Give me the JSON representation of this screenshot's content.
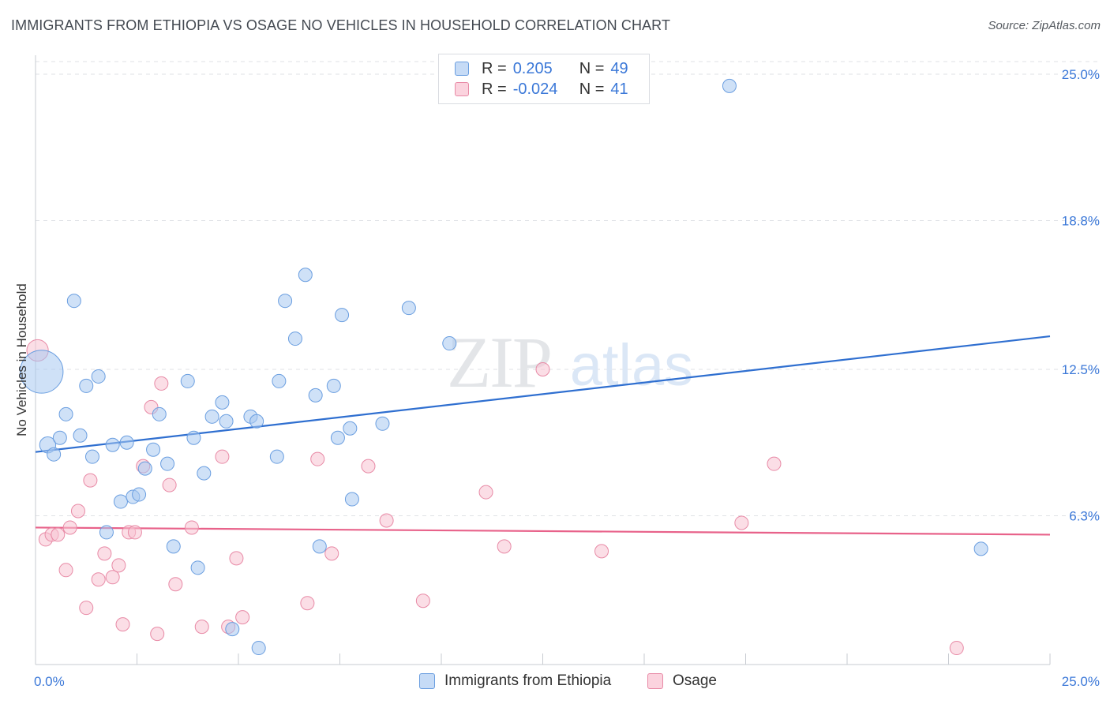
{
  "title": "IMMIGRANTS FROM ETHIOPIA VS OSAGE NO VEHICLES IN HOUSEHOLD CORRELATION CHART",
  "source": "Source: ZipAtlas.com",
  "watermark": {
    "zip": "ZIP",
    "atlas": "atlas"
  },
  "legend_top": {
    "rows": [
      {
        "r_label": "R =",
        "r_value": "0.205",
        "n_label": "N =",
        "n_value": "49",
        "color": "#a8c8f0"
      },
      {
        "r_label": "R =",
        "r_value": "-0.024",
        "n_label": "N =",
        "n_value": "41",
        "color": "#f5b6c8"
      }
    ]
  },
  "legend_bottom": {
    "items": [
      {
        "label": "Immigrants from Ethiopia",
        "color": "#a8c8f0"
      },
      {
        "label": "Osage",
        "color": "#f5b6c8"
      }
    ]
  },
  "colors": {
    "blue_fill": "#a8c8f0",
    "blue_stroke": "#6a9ee0",
    "blue_line": "#2f6fd0",
    "pink_fill": "#f8c3d2",
    "pink_stroke": "#e88aa6",
    "pink_line": "#e8628a",
    "tick_label": "#3b78d8",
    "grid": "#dfe2e6"
  },
  "chart_data": {
    "type": "scatter",
    "title": "IMMIGRANTS FROM ETHIOPIA VS OSAGE NO VEHICLES IN HOUSEHOLD CORRELATION CHART",
    "xlabel": "",
    "ylabel": "No Vehicles in Household",
    "xlim": [
      0,
      25
    ],
    "ylim": [
      0,
      25.8
    ],
    "x_tick_labels": [
      "0.0%",
      "25.0%"
    ],
    "y_ticks": [
      6.3,
      12.5,
      18.8,
      25.0
    ],
    "y_tick_labels": [
      "6.3%",
      "12.5%",
      "18.8%",
      "25.0%"
    ],
    "grid": "horizontal dashed",
    "legend_position": "top-center",
    "series": [
      {
        "name": "Immigrants from Ethiopia",
        "points": [
          [
            0.15,
            12.4
          ],
          [
            0.3,
            9.3
          ],
          [
            0.45,
            8.9
          ],
          [
            0.6,
            9.6
          ],
          [
            0.75,
            10.6
          ],
          [
            0.95,
            15.4
          ],
          [
            1.1,
            9.7
          ],
          [
            1.25,
            11.8
          ],
          [
            1.4,
            8.8
          ],
          [
            1.55,
            12.2
          ],
          [
            1.75,
            5.6
          ],
          [
            1.9,
            9.3
          ],
          [
            2.1,
            6.9
          ],
          [
            2.25,
            9.4
          ],
          [
            2.4,
            7.1
          ],
          [
            2.55,
            7.2
          ],
          [
            2.7,
            8.3
          ],
          [
            2.9,
            9.1
          ],
          [
            3.05,
            10.6
          ],
          [
            3.25,
            8.5
          ],
          [
            3.4,
            5.0
          ],
          [
            3.75,
            12.0
          ],
          [
            3.9,
            9.6
          ],
          [
            4.0,
            4.1
          ],
          [
            4.15,
            8.1
          ],
          [
            4.35,
            10.5
          ],
          [
            4.6,
            11.1
          ],
          [
            4.7,
            10.3
          ],
          [
            4.85,
            1.5
          ],
          [
            5.3,
            10.5
          ],
          [
            5.45,
            10.3
          ],
          [
            5.5,
            0.7
          ],
          [
            5.95,
            8.8
          ],
          [
            6.0,
            12.0
          ],
          [
            6.15,
            15.4
          ],
          [
            6.4,
            13.8
          ],
          [
            6.65,
            16.5
          ],
          [
            6.9,
            11.4
          ],
          [
            7.0,
            5.0
          ],
          [
            7.35,
            11.8
          ],
          [
            7.45,
            9.6
          ],
          [
            7.55,
            14.8
          ],
          [
            7.75,
            10.0
          ],
          [
            7.8,
            7.0
          ],
          [
            8.55,
            10.2
          ],
          [
            9.2,
            15.1
          ],
          [
            10.2,
            13.6
          ],
          [
            17.1,
            24.5
          ],
          [
            23.3,
            4.9
          ]
        ],
        "sizes": [
          3.2,
          1.2,
          1.0,
          1.0,
          1.0,
          1.0,
          1.0,
          1.0,
          1.0,
          1.0,
          1.0,
          1.0,
          1.0,
          1.0,
          1.0,
          1.0,
          1.0,
          1.0,
          1.0,
          1.0,
          1.0,
          1.0,
          1.0,
          1.0,
          1.0,
          1.0,
          1.0,
          1.0,
          1.0,
          1.0,
          1.0,
          1.0,
          1.0,
          1.0,
          1.0,
          1.0,
          1.0,
          1.0,
          1.0,
          1.0,
          1.0,
          1.0,
          1.0,
          1.0,
          1.0,
          1.0,
          1.0,
          1.0,
          1.0
        ],
        "trend": {
          "x": [
            0,
            25
          ],
          "y": [
            9.0,
            13.9
          ]
        }
      },
      {
        "name": "Osage",
        "points": [
          [
            0.05,
            13.3
          ],
          [
            0.25,
            5.3
          ],
          [
            0.4,
            5.5
          ],
          [
            0.55,
            5.5
          ],
          [
            0.75,
            4.0
          ],
          [
            0.85,
            5.8
          ],
          [
            1.05,
            6.5
          ],
          [
            1.25,
            2.4
          ],
          [
            1.35,
            7.8
          ],
          [
            1.55,
            3.6
          ],
          [
            1.7,
            4.7
          ],
          [
            1.9,
            3.7
          ],
          [
            2.05,
            4.2
          ],
          [
            2.15,
            1.7
          ],
          [
            2.3,
            5.6
          ],
          [
            2.45,
            5.6
          ],
          [
            2.65,
            8.4
          ],
          [
            2.85,
            10.9
          ],
          [
            3.0,
            1.3
          ],
          [
            3.1,
            11.9
          ],
          [
            3.3,
            7.6
          ],
          [
            3.45,
            3.4
          ],
          [
            3.85,
            5.8
          ],
          [
            4.1,
            1.6
          ],
          [
            4.6,
            8.8
          ],
          [
            4.75,
            1.6
          ],
          [
            4.95,
            4.5
          ],
          [
            5.1,
            2.0
          ],
          [
            6.7,
            2.6
          ],
          [
            6.95,
            8.7
          ],
          [
            7.3,
            4.7
          ],
          [
            8.2,
            8.4
          ],
          [
            8.65,
            6.1
          ],
          [
            9.55,
            2.7
          ],
          [
            11.1,
            7.3
          ],
          [
            11.55,
            5.0
          ],
          [
            12.5,
            12.5
          ],
          [
            13.95,
            4.8
          ],
          [
            17.4,
            6.0
          ],
          [
            18.2,
            8.5
          ],
          [
            22.7,
            0.7
          ]
        ],
        "sizes": [
          1.6,
          1.0,
          1.0,
          1.0,
          1.0,
          1.0,
          1.0,
          1.0,
          1.0,
          1.0,
          1.0,
          1.0,
          1.0,
          1.0,
          1.0,
          1.0,
          1.0,
          1.0,
          1.0,
          1.0,
          1.0,
          1.0,
          1.0,
          1.0,
          1.0,
          1.0,
          1.0,
          1.0,
          1.0,
          1.0,
          1.0,
          1.0,
          1.0,
          1.0,
          1.0,
          1.0,
          1.0,
          1.0,
          1.0,
          1.0,
          1.0
        ],
        "trend": {
          "x": [
            0,
            25
          ],
          "y": [
            5.8,
            5.5
          ]
        }
      }
    ]
  }
}
